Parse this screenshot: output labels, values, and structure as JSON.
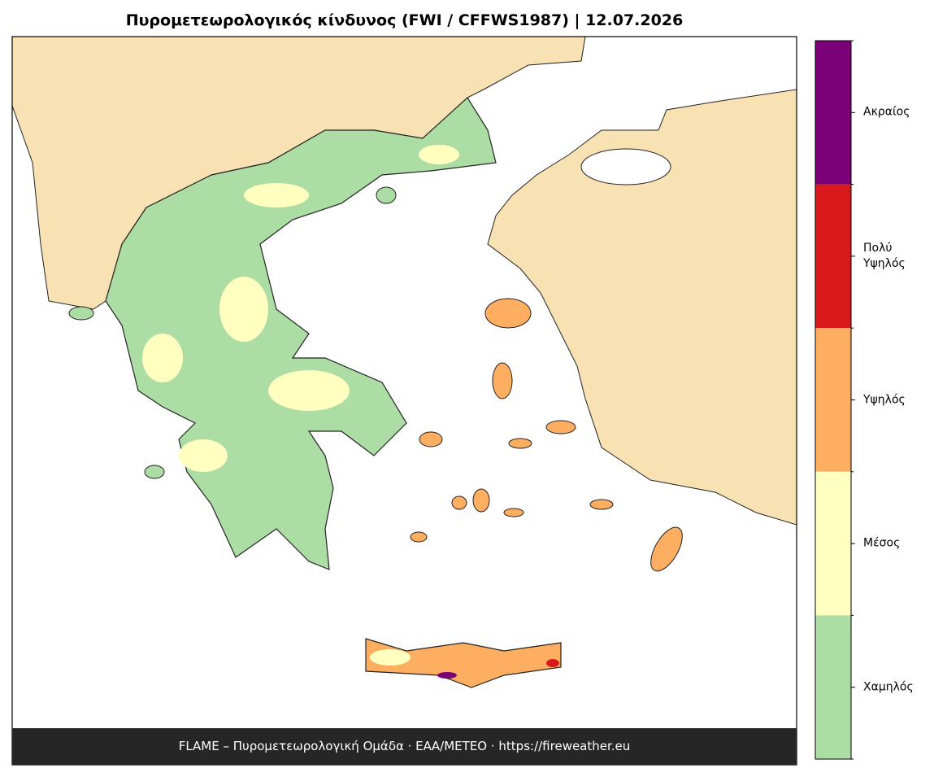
{
  "title": "Πυρομετεωρολογικός κίνδυνος (FWI / CFFWS1987)  |  12.07.2026",
  "legend": {
    "items": [
      {
        "label": "Ακραίος",
        "color": "#7a0177"
      },
      {
        "label": "Πολύ Υψηλός",
        "color": "#d7191c"
      },
      {
        "label": "Υψηλός",
        "color": "#fdae61"
      },
      {
        "label": "Μέσος",
        "color": "#ffffbf"
      },
      {
        "label": "Χαμηλός",
        "color": "#abdda4"
      }
    ]
  },
  "footer": "FLAME – Πυρομετεωρολογική Ομάδα · ΕΑΑ/METEO · https://fireweather.eu"
}
